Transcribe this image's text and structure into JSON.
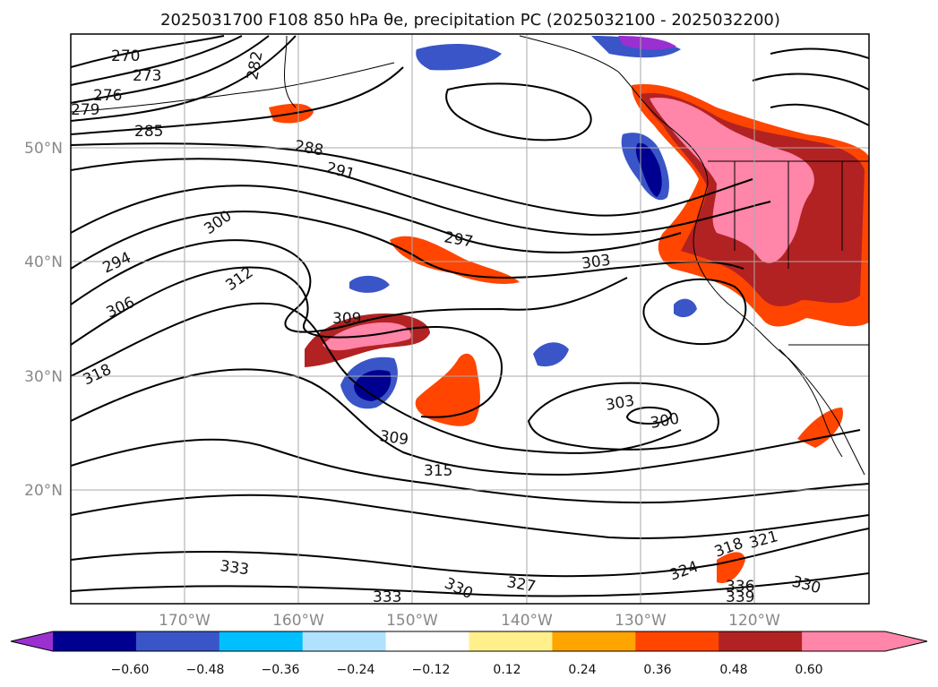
{
  "title": "2025031700 F108 850 hPa θe, precipitation PC (2025032100 - 2025032200)",
  "map": {
    "lat_labels": [
      "50°N",
      "40°N",
      "30°N",
      "20°N"
    ],
    "lon_labels": [
      "170°W",
      "160°W",
      "150°W",
      "140°W",
      "130°W",
      "120°W"
    ],
    "contour_labels": [
      "270",
      "273",
      "276",
      "279",
      "282",
      "285",
      "288",
      "291",
      "294",
      "297",
      "300",
      "303",
      "306",
      "309",
      "312",
      "315",
      "318",
      "321",
      "324",
      "327",
      "330",
      "333",
      "336",
      "339"
    ]
  },
  "colorbar": {
    "ticks": [
      "−0.60",
      "−0.48",
      "−0.36",
      "−0.24",
      "−0.12",
      "0.12",
      "0.24",
      "0.36",
      "0.48",
      "0.60"
    ],
    "colors": {
      "under": "#9b30d0",
      "bins": [
        "#000090",
        "#3a55c8",
        "#00bfff",
        "#b0e2ff",
        "#ffffff",
        "#fff08c",
        "#ffa500",
        "#ff4500",
        "#b22222",
        "#ff85a9"
      ],
      "over": "#ff85a9"
    }
  }
}
